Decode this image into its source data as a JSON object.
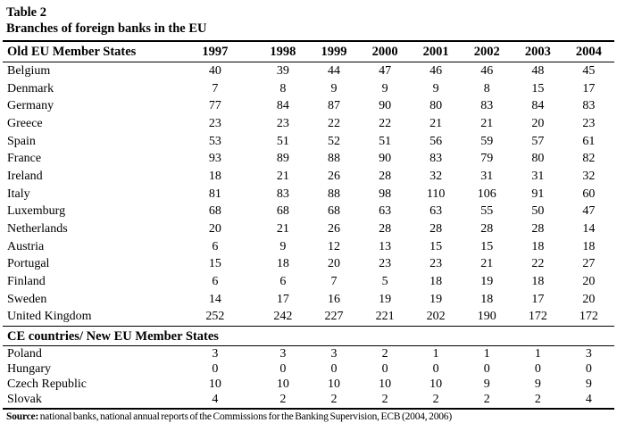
{
  "title": {
    "table_number": "Table 2",
    "table_caption": "Branches of foreign banks in the EU"
  },
  "table": {
    "header": {
      "label": "Old EU Member States",
      "years": [
        "1997",
        "1998",
        "1999",
        "2000",
        "2001",
        "2002",
        "2003",
        "2004"
      ]
    },
    "sections": [
      {
        "rows": [
          {
            "country": "Belgium",
            "values": [
              40,
              39,
              44,
              47,
              46,
              46,
              48,
              45
            ]
          },
          {
            "country": "Denmark",
            "values": [
              7,
              8,
              9,
              9,
              9,
              8,
              15,
              17
            ]
          },
          {
            "country": "Germany",
            "values": [
              77,
              84,
              87,
              90,
              80,
              83,
              84,
              83
            ]
          },
          {
            "country": "Greece",
            "values": [
              23,
              23,
              22,
              22,
              21,
              21,
              20,
              23
            ]
          },
          {
            "country": "Spain",
            "values": [
              53,
              51,
              52,
              51,
              56,
              59,
              57,
              61
            ]
          },
          {
            "country": "France",
            "values": [
              93,
              89,
              88,
              90,
              83,
              79,
              80,
              82
            ]
          },
          {
            "country": "Ireland",
            "values": [
              18,
              21,
              26,
              28,
              32,
              31,
              31,
              32
            ]
          },
          {
            "country": "Italy",
            "values": [
              81,
              83,
              88,
              98,
              110,
              106,
              91,
              60
            ]
          },
          {
            "country": "Luxemburg",
            "values": [
              68,
              68,
              68,
              63,
              63,
              55,
              50,
              47
            ]
          },
          {
            "country": "Netherlands",
            "values": [
              20,
              21,
              26,
              28,
              28,
              28,
              28,
              14
            ]
          },
          {
            "country": "Austria",
            "values": [
              6,
              9,
              12,
              13,
              15,
              15,
              18,
              18
            ]
          },
          {
            "country": "Portugal",
            "values": [
              15,
              18,
              20,
              23,
              23,
              21,
              22,
              27
            ]
          },
          {
            "country": "Finland",
            "values": [
              6,
              6,
              7,
              5,
              18,
              19,
              18,
              20
            ]
          },
          {
            "country": "Sweden",
            "values": [
              14,
              17,
              16,
              19,
              19,
              18,
              17,
              20
            ]
          },
          {
            "country": "United Kingdom",
            "values": [
              252,
              242,
              227,
              221,
              202,
              190,
              172,
              172
            ]
          }
        ]
      },
      {
        "header": "CE countries/ New EU Member States",
        "rows": [
          {
            "country": "Poland",
            "values": [
              3,
              3,
              3,
              2,
              1,
              1,
              1,
              3
            ]
          },
          {
            "country": "Hungary",
            "values": [
              0,
              0,
              0,
              0,
              0,
              0,
              0,
              0
            ]
          },
          {
            "country": "Czech Republic",
            "values": [
              10,
              10,
              10,
              10,
              10,
              9,
              9,
              9
            ]
          },
          {
            "country": "Slovak",
            "values": [
              4,
              2,
              2,
              2,
              2,
              2,
              2,
              4
            ]
          }
        ]
      }
    ]
  },
  "source": {
    "label": "Source:",
    "text": " national banks, national annual reports of the Commissions for the Banking Supervision, ECB (2004, 2006)"
  }
}
